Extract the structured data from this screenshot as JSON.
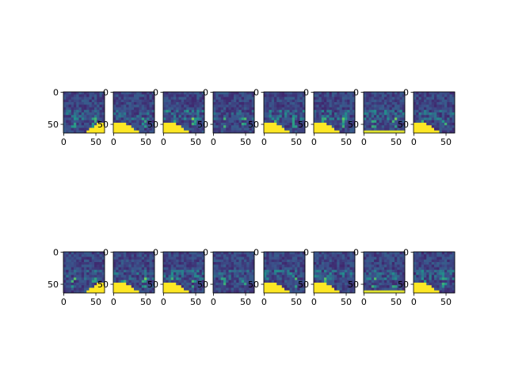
{
  "chart_data": [
    {
      "type": "heatmap",
      "rows": 2,
      "cols": 8,
      "colormap": "viridis",
      "image_size": [
        64,
        64
      ],
      "xlim": [
        0,
        63
      ],
      "ylim": [
        63,
        0
      ],
      "xticks": [
        "0",
        "50"
      ],
      "yticks": [
        "0",
        "50"
      ],
      "title": "",
      "xlabel": "",
      "ylabel": "",
      "panels": [
        {
          "id": "r1c1",
          "yellow_corner": "bottom-right",
          "brightness": 0.35
        },
        {
          "id": "r1c2",
          "yellow_corner": "bottom-left",
          "brightness": 0.35
        },
        {
          "id": "r1c3",
          "yellow_corner": "bottom-left",
          "brightness": 0.6
        },
        {
          "id": "r1c4",
          "yellow_corner": "none",
          "brightness": 0.3
        },
        {
          "id": "r1c5",
          "yellow_corner": "bottom-left",
          "brightness": 0.5
        },
        {
          "id": "r1c6",
          "yellow_corner": "bottom-left",
          "brightness": 0.45
        },
        {
          "id": "r1c7",
          "yellow_corner": "bottom",
          "brightness": 0.45
        },
        {
          "id": "r1c8",
          "yellow_corner": "bottom-left",
          "brightness": 0.4
        },
        {
          "id": "r2c1",
          "yellow_corner": "bottom-right",
          "brightness": 0.35
        },
        {
          "id": "r2c2",
          "yellow_corner": "bottom-left",
          "brightness": 0.35
        },
        {
          "id": "r2c3",
          "yellow_corner": "bottom-left",
          "brightness": 0.55
        },
        {
          "id": "r2c4",
          "yellow_corner": "none",
          "brightness": 0.3
        },
        {
          "id": "r2c5",
          "yellow_corner": "bottom-left",
          "brightness": 0.45
        },
        {
          "id": "r2c6",
          "yellow_corner": "bottom-left",
          "brightness": 0.45
        },
        {
          "id": "r2c7",
          "yellow_corner": "bottom",
          "brightness": 0.45
        },
        {
          "id": "r2c8",
          "yellow_corner": "bottom-left",
          "brightness": 0.45
        }
      ]
    }
  ],
  "colors": {
    "viridis_dark": "#440154",
    "viridis_blue": "#3b528b",
    "viridis_teal": "#21918c",
    "viridis_green": "#5ec962",
    "viridis_yellow": "#fde725",
    "axis": "#000000",
    "background": "#ffffff"
  }
}
